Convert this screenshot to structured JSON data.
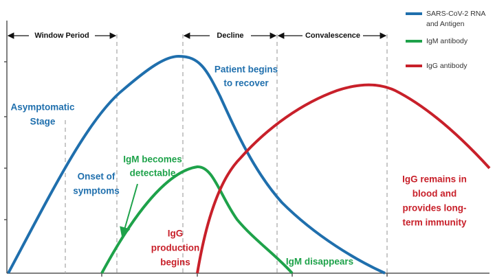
{
  "phases": [
    "Window Period",
    "Decline",
    "Convalescence"
  ],
  "legend": [
    {
      "lines": [
        "SARS-CoV-2  RNA",
        "and Antigen"
      ]
    },
    {
      "lines": [
        "IgM antibody"
      ]
    },
    {
      "lines": [
        "IgG antibody"
      ]
    }
  ],
  "annotations": {
    "asymptomatic": [
      "Asymptomatic",
      "Stage"
    ],
    "onset": [
      "Onset of",
      "symptoms"
    ],
    "recover": [
      "Patient begins",
      "to recover"
    ],
    "igm_detect": [
      "IgM becomes",
      "detectable"
    ],
    "igg_begin": [
      "IgG",
      "production",
      "begins"
    ],
    "igm_gone": [
      "IgM disappears"
    ],
    "igg_remain": [
      "IgG remains in",
      "blood and",
      "provides long-",
      "term immunity"
    ]
  }
}
